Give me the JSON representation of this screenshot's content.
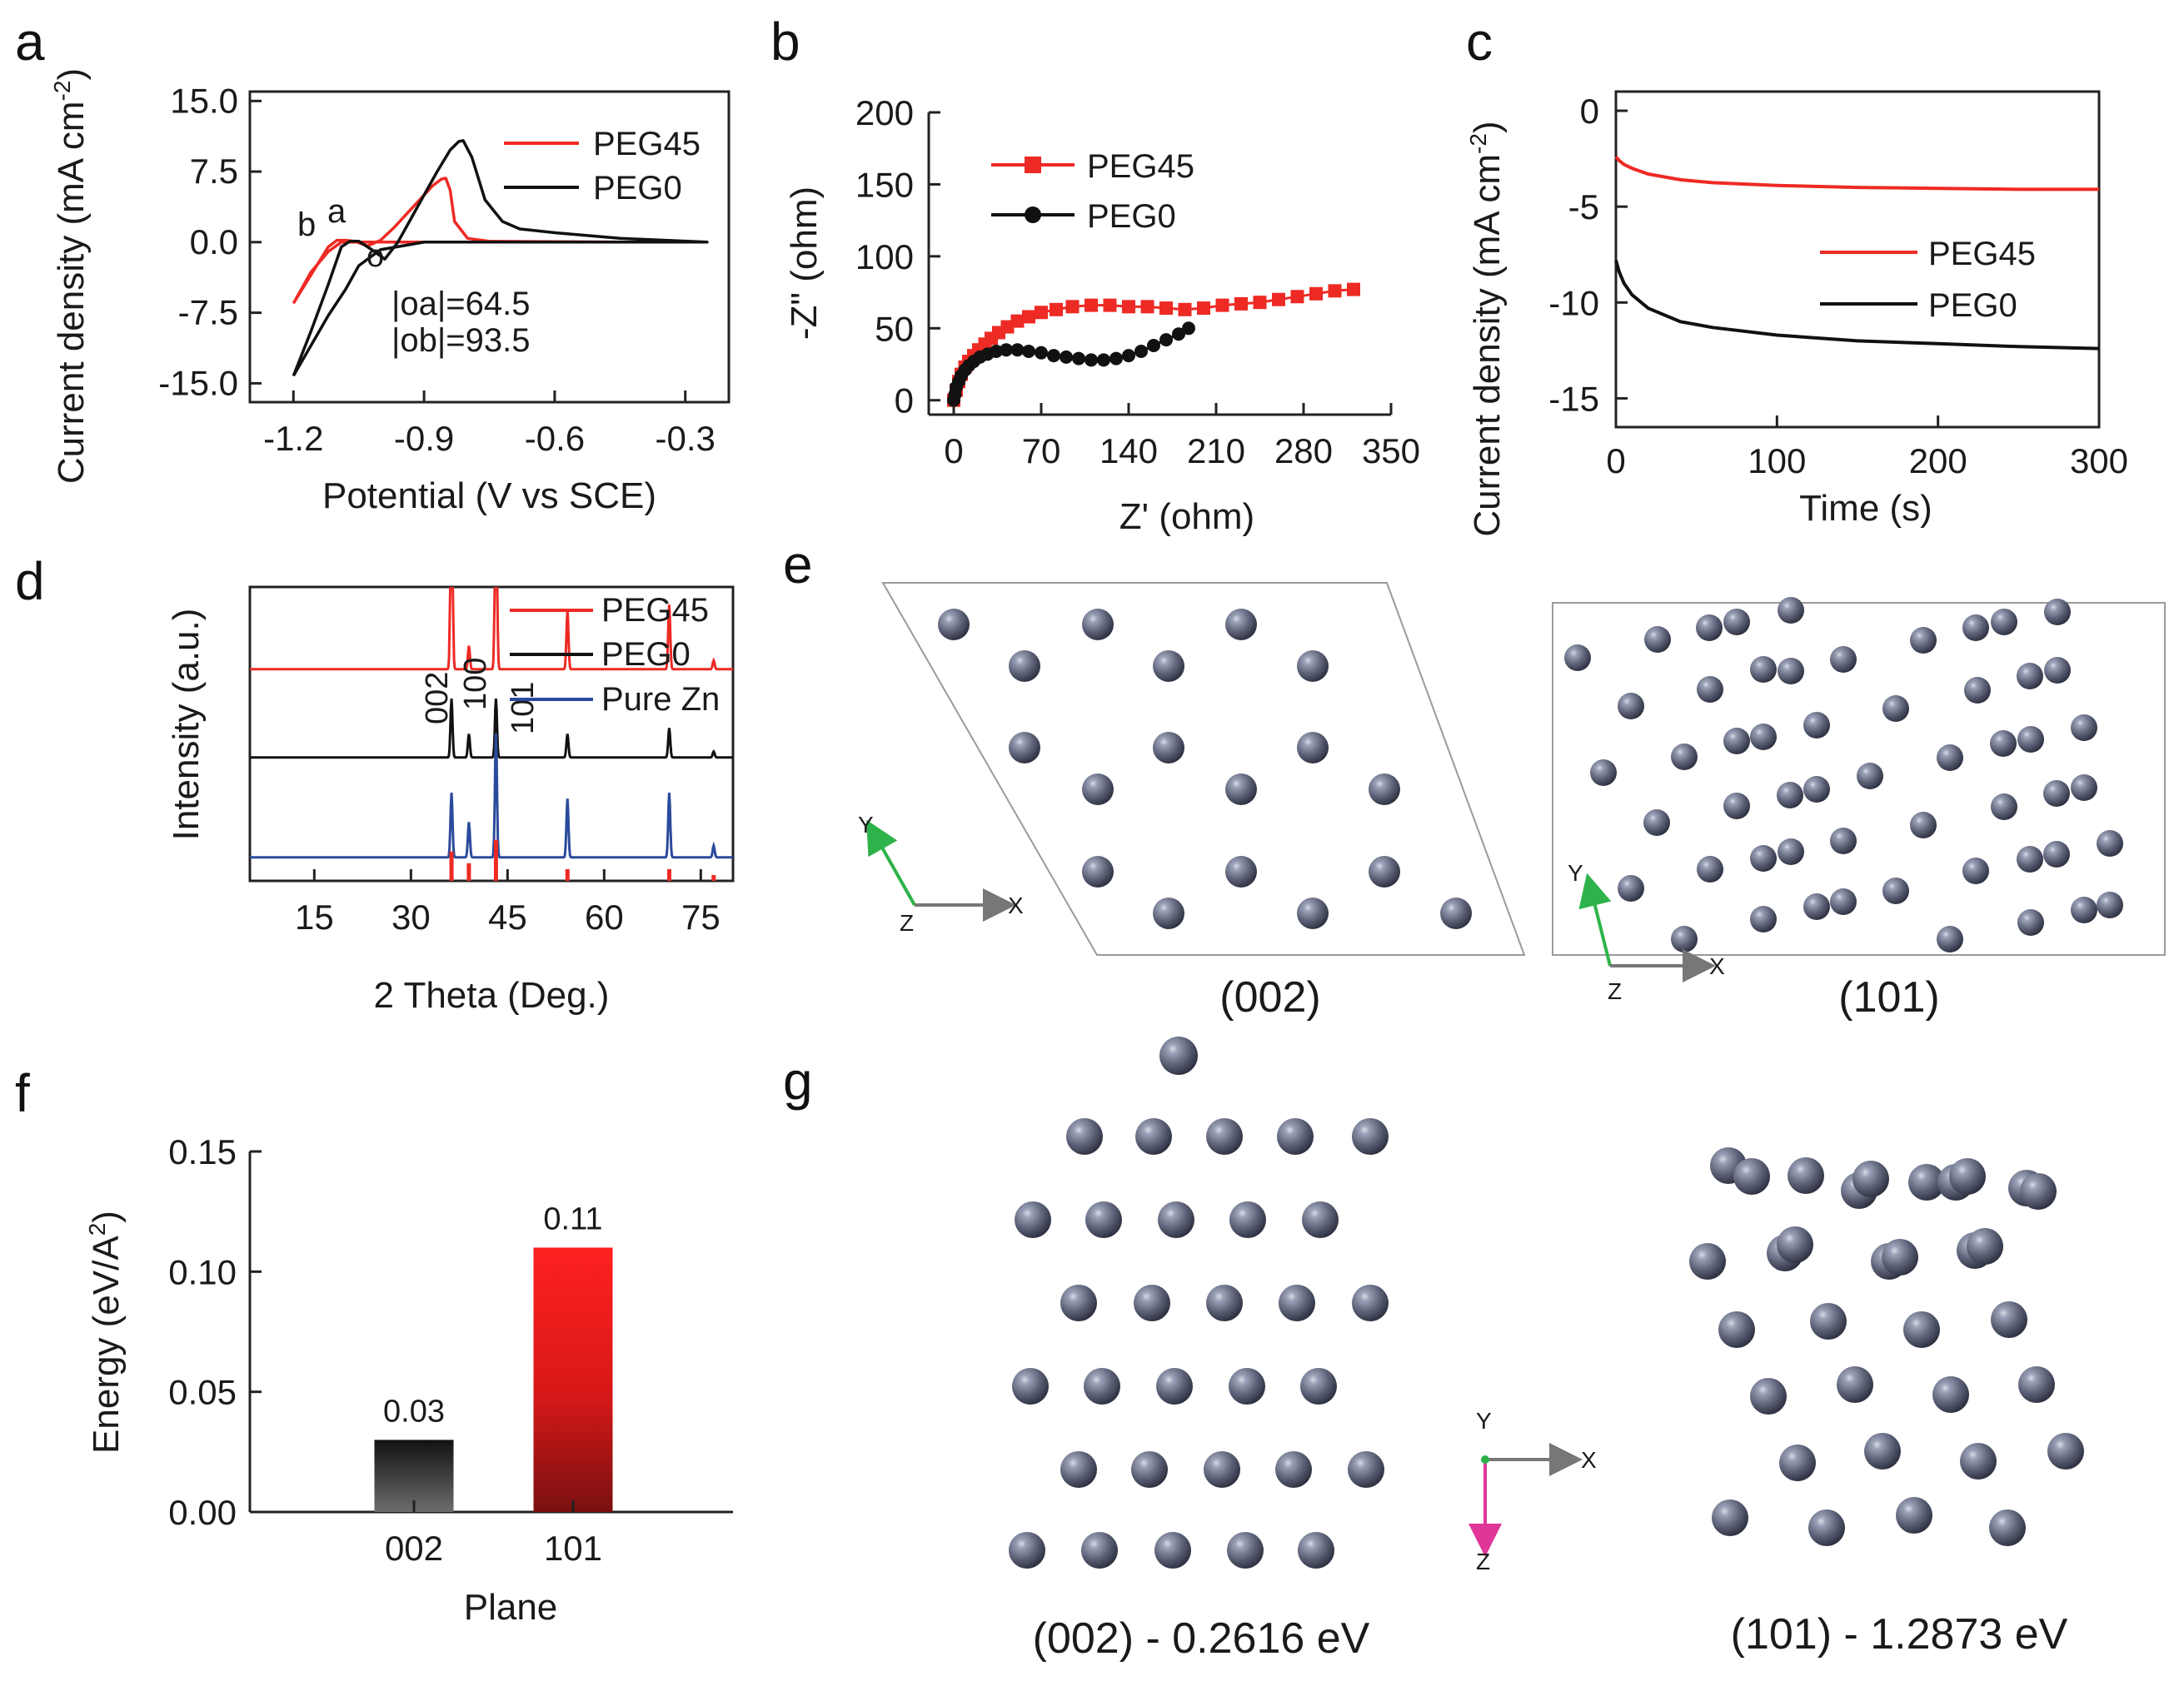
{
  "colors": {
    "red": "#ee2a24",
    "black": "#111111",
    "blue": "#2a4b9b",
    "atom": "#6b6f80",
    "axis_y": "#2db34a",
    "axis_x": "#777777",
    "axis_z": "#e0369a"
  },
  "panel_labels": {
    "a": "a",
    "b": "b",
    "c": "c",
    "d": "d",
    "e": "e",
    "f": "f",
    "g": "g"
  },
  "chart_data": [
    {
      "id": "a",
      "type": "line",
      "xlabel": "Potential (V vs SCE)",
      "ylabel": "Current density (mA cm",
      "ylabel_sup": "-2",
      "ylabel_end": ")",
      "xlim": [
        -1.3,
        -0.2
      ],
      "ylim": [
        -17,
        16
      ],
      "xticks": [
        -1.2,
        -0.9,
        -0.6,
        -0.3
      ],
      "xtick_labels": [
        "-1.2",
        "-0.9",
        "-0.6",
        "-0.3"
      ],
      "yticks": [
        15,
        7.5,
        0,
        -7.5,
        -15
      ],
      "ytick_labels": [
        "15.0",
        "7.5",
        "0.0",
        "-7.5",
        "-15.0"
      ],
      "series": [
        {
          "name": "PEG45",
          "color": "#ee2a24",
          "x": [
            -1.2,
            -1.16,
            -1.12,
            -1.1,
            -1.08,
            -1.06,
            -1.03,
            -1.0,
            -0.97,
            -0.94,
            -0.91,
            -0.88,
            -0.86,
            -0.85,
            -0.84,
            -0.83,
            -0.8,
            -0.75,
            -0.6,
            -0.4,
            -0.25,
            -0.4,
            -0.6,
            -0.8,
            -0.95,
            -1.05,
            -1.09,
            -1.12,
            -1.16,
            -1.2
          ],
          "y": [
            -6.5,
            -3.5,
            -0.5,
            0.2,
            0.2,
            0.1,
            -0.4,
            0.2,
            1.5,
            3.0,
            4.5,
            6.0,
            6.7,
            6.8,
            5.5,
            2.2,
            0.4,
            0.1,
            0.05,
            0.0,
            0.0,
            0.0,
            0.0,
            0.0,
            0.0,
            0.0,
            0.0,
            -1.0,
            -3.2,
            -6.5
          ]
        },
        {
          "name": "PEG0",
          "color": "#111111",
          "x": [
            -1.2,
            -1.16,
            -1.12,
            -1.09,
            -1.07,
            -1.05,
            -1.02,
            -0.99,
            -0.96,
            -0.93,
            -0.9,
            -0.87,
            -0.84,
            -0.82,
            -0.81,
            -0.79,
            -0.76,
            -0.72,
            -0.68,
            -0.6,
            -0.45,
            -0.25,
            -0.45,
            -0.7,
            -0.9,
            -1.0,
            -1.05,
            -1.08,
            -1.12,
            -1.16,
            -1.2
          ],
          "y": [
            -14.2,
            -9.5,
            -4.5,
            -0.5,
            0.1,
            0.1,
            -0.8,
            -1.8,
            0.0,
            2.5,
            5.0,
            7.5,
            9.8,
            10.7,
            10.8,
            9.0,
            4.5,
            2.2,
            1.4,
            1.0,
            0.4,
            0.0,
            0.0,
            0.0,
            0.0,
            -0.8,
            -2.5,
            -5.0,
            -7.8,
            -11.0,
            -14.2
          ]
        }
      ],
      "annotations": [
        {
          "text": "b",
          "color": "#111111"
        },
        {
          "text": "a",
          "color": "#111111"
        },
        {
          "text": "o",
          "color": "#111111"
        },
        {
          "text": "|oa|=64.5",
          "color": "#111111"
        },
        {
          "text": "|ob|=93.5",
          "color": "#ee2a24"
        }
      ]
    },
    {
      "id": "b",
      "type": "scatter",
      "xlabel": "Z' (ohm)",
      "ylabel": "-Z\" (ohm)",
      "xlim": [
        -20,
        350
      ],
      "ylim": [
        -10,
        200
      ],
      "xticks": [
        0,
        70,
        140,
        210,
        280,
        350
      ],
      "xtick_labels": [
        "0",
        "70",
        "140",
        "210",
        "280",
        "350"
      ],
      "yticks": [
        0,
        50,
        100,
        150,
        200
      ],
      "ytick_labels": [
        "0",
        "50",
        "100",
        "150",
        "200"
      ],
      "series": [
        {
          "name": "PEG45",
          "color": "#ee2a24",
          "marker": "square",
          "x": [
            0,
            2,
            4,
            6,
            9,
            12,
            16,
            20,
            25,
            30,
            36,
            43,
            51,
            60,
            70,
            82,
            95,
            110,
            125,
            140,
            155,
            170,
            185,
            200,
            215,
            230,
            245,
            260,
            275,
            290,
            305,
            320
          ],
          "y": [
            0,
            7,
            13,
            18,
            23,
            27,
            31,
            35,
            39,
            43,
            47,
            51,
            55,
            58,
            61,
            63,
            65,
            66,
            66,
            65,
            65,
            64,
            63,
            64,
            66,
            67,
            68,
            70,
            72,
            74,
            76,
            77
          ]
        },
        {
          "name": "PEG0",
          "color": "#111111",
          "marker": "circle",
          "x": [
            0,
            1,
            2,
            4,
            6,
            9,
            12,
            16,
            21,
            27,
            34,
            42,
            51,
            60,
            70,
            80,
            90,
            100,
            110,
            120,
            130,
            140,
            150,
            160,
            170,
            180,
            188
          ],
          "y": [
            0,
            4,
            9,
            13,
            17,
            21,
            24,
            27,
            30,
            32,
            34,
            35,
            35,
            34,
            33,
            31,
            30,
            29,
            28,
            28,
            29,
            31,
            34,
            38,
            42,
            46,
            50
          ]
        }
      ]
    },
    {
      "id": "c",
      "type": "line",
      "xlabel": "Time (s)",
      "ylabel": "Current density (mA cm",
      "ylabel_sup": "-2",
      "ylabel_end": ")",
      "xlim": [
        0,
        300
      ],
      "ylim": [
        -16.5,
        1
      ],
      "xticks": [
        0,
        100,
        200,
        300
      ],
      "xtick_labels": [
        "0",
        "100",
        "200",
        "300"
      ],
      "yticks": [
        0,
        -5,
        -10,
        -15
      ],
      "ytick_labels": [
        "0",
        "-5",
        "-10",
        "-15"
      ],
      "series": [
        {
          "name": "PEG45",
          "color": "#ee2a24",
          "x": [
            0,
            2,
            5,
            10,
            20,
            40,
            60,
            100,
            150,
            200,
            250,
            300
          ],
          "y": [
            -2.4,
            -2.6,
            -2.8,
            -3.0,
            -3.3,
            -3.6,
            -3.75,
            -3.9,
            -4.0,
            -4.05,
            -4.1,
            -4.1
          ]
        },
        {
          "name": "PEG0",
          "color": "#111111",
          "x": [
            0,
            2,
            5,
            10,
            20,
            40,
            60,
            100,
            150,
            200,
            250,
            300
          ],
          "y": [
            -7.8,
            -8.4,
            -9.0,
            -9.6,
            -10.3,
            -11.0,
            -11.3,
            -11.7,
            -12.0,
            -12.15,
            -12.3,
            -12.4
          ]
        }
      ]
    },
    {
      "id": "d",
      "type": "line",
      "xlabel": "2 Theta (Deg.)",
      "ylabel": "Intensity (a.u.)",
      "xlim": [
        5,
        80
      ],
      "xticks": [
        15,
        30,
        45,
        60,
        75
      ],
      "xtick_labels": [
        "15",
        "30",
        "45",
        "60",
        "75"
      ],
      "series": [
        {
          "name": "PEG45",
          "color": "#ee2a24",
          "baseline": 0.72,
          "peaks": [
            [
              36.3,
              0.92
            ],
            [
              39.0,
              0.08
            ],
            [
              43.2,
              0.82
            ],
            [
              54.3,
              0.2
            ],
            [
              70.1,
              0.22
            ],
            [
              77.0,
              0.03
            ]
          ]
        },
        {
          "name": "PEG0",
          "color": "#111111",
          "baseline": 0.42,
          "peaks": [
            [
              36.3,
              0.2
            ],
            [
              39.0,
              0.08
            ],
            [
              43.2,
              0.2
            ],
            [
              54.3,
              0.08
            ],
            [
              70.1,
              0.1
            ],
            [
              77.0,
              0.02
            ]
          ]
        },
        {
          "name": "Pure Zn",
          "color": "#2a4b9b",
          "baseline": 0.08,
          "peaks": [
            [
              36.3,
              0.22
            ],
            [
              39.0,
              0.12
            ],
            [
              43.2,
              0.42
            ],
            [
              54.3,
              0.2
            ],
            [
              70.1,
              0.22
            ],
            [
              77.0,
              0.04
            ]
          ]
        }
      ],
      "reference_peaks": [
        36.3,
        39.0,
        43.2,
        54.3,
        70.1,
        77.0
      ],
      "reference_heights": [
        0.1,
        0.06,
        0.14,
        0.04,
        0.04,
        0.02
      ],
      "peak_labels": [
        "002",
        "100",
        "101"
      ]
    },
    {
      "id": "f",
      "type": "bar",
      "xlabel": "Plane",
      "ylabel": "Energy (eV/A",
      "ylabel_sup": "2",
      "ylabel_end": ")",
      "ylim": [
        0,
        0.15
      ],
      "categories": [
        "002",
        "101"
      ],
      "values": [
        0.03,
        0.11
      ],
      "value_labels": [
        "0.03",
        "0.11"
      ],
      "yticks": [
        0,
        0.05,
        0.1,
        0.15
      ],
      "ytick_labels": [
        "0.00",
        "0.05",
        "0.10",
        "0.15"
      ]
    }
  ],
  "panel_e": {
    "captions": [
      "(002)",
      "(101)"
    ],
    "axis_labels": {
      "x": "X",
      "y": "Y",
      "z": "Z"
    }
  },
  "panel_g": {
    "captions": [
      "(002) - 0.2616 eV",
      "(101) - 1.2873 eV"
    ],
    "axis_labels": {
      "x": "X",
      "y": "Y",
      "z": "Z"
    }
  }
}
